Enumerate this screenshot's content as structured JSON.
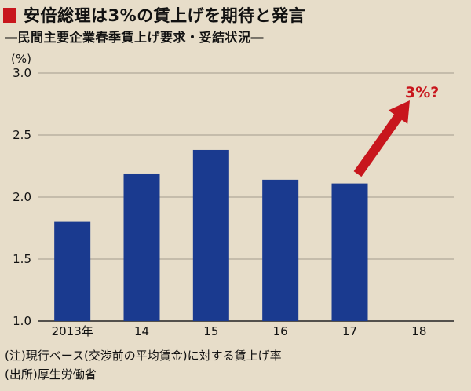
{
  "header": {
    "title": "安倍総理は3%の賃上げを期待と発言",
    "subtitle": "―民間主要企業春季賃上げ要求・妥結状況―"
  },
  "chart_data": {
    "type": "bar",
    "title": "安倍総理は3%の賃上げを期待と発言",
    "subtitle": "―民間主要企業春季賃上げ要求・妥結状況―",
    "unit_label": "(%)",
    "categories": [
      "2013年",
      "14",
      "15",
      "16",
      "17",
      "18"
    ],
    "values": [
      1.8,
      2.19,
      2.38,
      2.14,
      2.11,
      null
    ],
    "ylim": [
      1.0,
      3.0
    ],
    "yticks": [
      "1.0",
      "1.5",
      "2.0",
      "2.5",
      "3.0"
    ],
    "grid": true,
    "bar_color": "#1a3a8f",
    "annotation": {
      "label": "3%?",
      "color": "#c8161d"
    }
  },
  "notes": {
    "note1": "(注)現行ベース(交渉前の平均賃金)に対する賃上げ率",
    "note2": "(出所)厚生労働省"
  }
}
